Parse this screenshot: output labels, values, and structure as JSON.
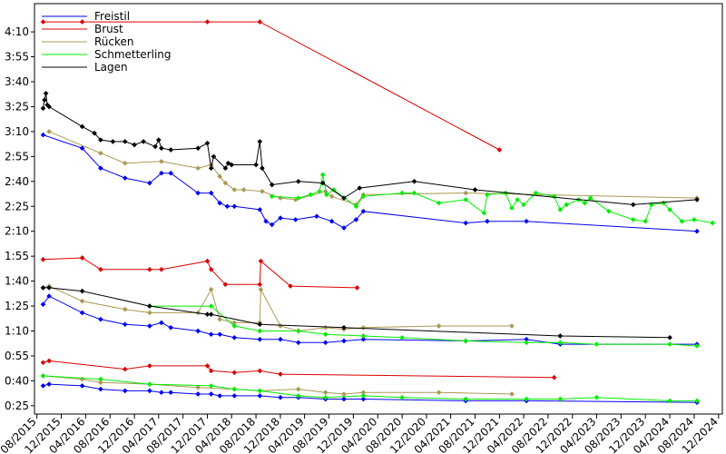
{
  "chart_data": {
    "type": "line",
    "title": "",
    "xlabel": "",
    "ylabel": "",
    "xlim": [
      "2015-07-20",
      "2024-12-20"
    ],
    "ylim_seconds": [
      20,
      267
    ],
    "x_ticks": [
      "08/2015",
      "12/2015",
      "04/2016",
      "08/2016",
      "12/2016",
      "04/2017",
      "08/2017",
      "12/2017",
      "04/2018",
      "08/2018",
      "12/2018",
      "04/2019",
      "08/2019",
      "12/2019",
      "04/2020",
      "08/2020",
      "12/2020",
      "04/2021",
      "08/2021",
      "12/2021",
      "04/2022",
      "08/2022",
      "12/2022",
      "04/2023",
      "08/2023",
      "12/2023",
      "04/2024",
      "08/2024",
      "12/2024"
    ],
    "y_ticks": [
      "0:25",
      "0:40",
      "0:55",
      "1:10",
      "1:25",
      "1:40",
      "1:55",
      "2:10",
      "2:25",
      "2:40",
      "2:55",
      "3:10",
      "3:25",
      "3:40",
      "3:55",
      "4:10"
    ],
    "legend": {
      "position": "top-left",
      "entries": [
        {
          "label": "Freistil",
          "color": "#0000ee"
        },
        {
          "label": "Brust",
          "color": "#dd0000"
        },
        {
          "label": "Rücken",
          "color": "#aa9955"
        },
        {
          "label": "Schmetterling",
          "color": "#00ee00"
        },
        {
          "label": "Lagen",
          "color": "#000000"
        }
      ]
    },
    "series": [
      {
        "name": "Freistil",
        "color": "#0000ee",
        "x": [
          "2015-09-01",
          "2016-03-15",
          "2016-06-15",
          "2016-10-15",
          "2017-02-15",
          "2017-04-15",
          "2017-06-01",
          "2017-10-15",
          "2017-12-20",
          "2018-02-01",
          "2018-03-10",
          "2018-04-15",
          "2018-08-20",
          "2018-09-20",
          "2018-10-20",
          "2018-12-01",
          "2019-02-15",
          "2019-06-01",
          "2019-08-15",
          "2019-10-15",
          "2019-12-15",
          "2020-01-20",
          "2021-06-15",
          "2021-10-01",
          "2022-04-15",
          "2024-08-15"
        ],
        "y": [
          "3:08",
          "3:00",
          "2:48",
          "2:42",
          "2:39",
          "2:45",
          "2:45",
          "2:33",
          "2:33",
          "2:27",
          "2:25",
          "2:25",
          "2:23",
          "2:16",
          "2:14",
          "2:18",
          "2:17",
          "2:19",
          "2:16",
          "2:12",
          "2:17",
          "2:22",
          "2:15",
          "2:16",
          "2:16",
          "2:10"
        ]
      },
      {
        "name": "Freistil",
        "color": "#0000ee",
        "x": [
          "2015-09-01",
          "2015-10-01",
          "2016-03-15",
          "2016-06-15",
          "2016-10-15",
          "2017-02-15",
          "2017-04-15",
          "2017-06-01",
          "2017-10-15",
          "2017-12-20",
          "2018-02-01",
          "2018-04-15",
          "2018-08-20",
          "2018-12-01",
          "2019-03-01",
          "2019-07-15",
          "2019-10-15",
          "2020-01-20",
          "2021-06-15",
          "2022-04-15",
          "2022-10-01",
          "2024-08-15"
        ],
        "y": [
          "1:26",
          "1:31",
          "1:21",
          "1:17",
          "1:14",
          "1:13",
          "1:15",
          "1:12",
          "1:10",
          "1:08",
          "1:08",
          "1:06",
          "1:05",
          "1:05",
          "1:03",
          "1:03",
          "1:04",
          "1:05",
          "1:04",
          "1:05",
          "1:02",
          "1:02"
        ]
      },
      {
        "name": "Freistil",
        "color": "#0000ee",
        "x": [
          "2015-09-01",
          "2015-10-01",
          "2016-03-15",
          "2016-06-15",
          "2016-10-15",
          "2017-02-15",
          "2017-04-15",
          "2017-06-01",
          "2017-10-15",
          "2017-12-20",
          "2018-02-01",
          "2018-04-15",
          "2018-08-20",
          "2018-12-01",
          "2019-03-01",
          "2019-07-15",
          "2019-10-15",
          "2020-01-20",
          "2021-06-15",
          "2022-04-15",
          "2024-08-15"
        ],
        "y": [
          "0:37",
          "0:38",
          "0:37",
          "0:35",
          "0:34",
          "0:34",
          "0:33",
          "0:33",
          "0:32",
          "0:32",
          "0:31",
          "0:31",
          "0:31",
          "0:30",
          "0:30",
          "0:29",
          "0:29",
          "0:29",
          "0:28",
          "0:28",
          "0:27"
        ]
      },
      {
        "name": "Brust",
        "color": "#dd0000",
        "x": [
          "2015-09-01",
          "2016-03-15",
          "2016-06-15",
          "2017-02-15",
          "2017-04-15",
          "2017-12-01",
          "2017-12-20",
          "2018-03-01",
          "2018-08-20",
          "2018-08-25",
          "2019-01-20",
          "2019-12-20"
        ],
        "y": [
          "1:53",
          "1:54",
          "1:47",
          "1:47",
          "1:47",
          "1:52",
          "1:47",
          "1:38",
          "1:38",
          "1:52",
          "1:37",
          "1:36"
        ]
      },
      {
        "name": "Brust",
        "color": "#dd0000",
        "x": [
          "2015-09-01",
          "2015-10-01",
          "2016-10-15",
          "2017-02-15",
          "2017-12-01",
          "2017-12-20",
          "2018-04-15",
          "2018-08-20",
          "2018-12-01",
          "2022-09-01"
        ],
        "y": [
          "0:51",
          "0:52",
          "0:47",
          "0:49",
          "0:49",
          "0:46",
          "0:45",
          "0:46",
          "0:44",
          "0:42"
        ]
      },
      {
        "name": "Brust",
        "color": "#dd0000",
        "x": [
          "2015-09-01",
          "2016-03-15",
          "2017-12-01",
          "2018-08-20",
          "2021-12-01"
        ],
        "y": [
          "4:16",
          "4:16",
          "4:16",
          "4:16",
          "2:59"
        ]
      },
      {
        "name": "Rücken",
        "color": "#aa9955",
        "x": [
          "2015-10-01",
          "2016-06-15",
          "2016-10-15",
          "2017-04-15",
          "2017-10-15",
          "2017-12-20",
          "2018-02-01",
          "2018-03-01",
          "2018-04-15",
          "2018-06-01",
          "2018-09-01",
          "2018-12-01",
          "2019-02-15",
          "2019-07-15",
          "2019-08-15",
          "2019-12-15",
          "2020-01-20",
          "2021-06-15",
          "2024-08-15"
        ],
        "y": [
          "3:10",
          "2:57",
          "2:51",
          "2:52",
          "2:48",
          "2:50",
          "2:43",
          "2:39",
          "2:35",
          "2:35",
          "2:34",
          "2:30",
          "2:29",
          "2:34",
          "2:31",
          "2:26",
          "2:32",
          "2:33",
          "2:30"
        ]
      },
      {
        "name": "Rücken",
        "color": "#aa9955",
        "x": [
          "2015-09-01",
          "2015-10-01",
          "2016-03-15",
          "2016-10-15",
          "2017-02-15",
          "2017-10-15",
          "2017-12-20",
          "2018-02-01",
          "2018-04-15",
          "2018-08-20",
          "2018-08-25",
          "2018-12-01",
          "2019-03-01",
          "2019-07-15",
          "2019-10-15",
          "2020-01-20",
          "2021-02-01",
          "2022-02-01"
        ],
        "y": [
          "1:36",
          "1:37",
          "1:28",
          "1:23",
          "1:21",
          "1:21",
          "1:35",
          "1:17",
          "1:15",
          "1:15",
          "1:35",
          "1:13",
          "1:10",
          "1:12",
          "1:11",
          "1:12",
          "1:13",
          "1:13"
        ]
      },
      {
        "name": "Rücken",
        "color": "#aa9955",
        "x": [
          "2015-09-01",
          "2016-03-15",
          "2016-06-15",
          "2017-02-15",
          "2017-10-15",
          "2018-04-15",
          "2018-08-20",
          "2019-03-01",
          "2019-07-15",
          "2019-10-15",
          "2020-01-20",
          "2021-02-01",
          "2022-02-01"
        ],
        "y": [
          "0:43",
          "0:41",
          "0:39",
          "0:38",
          "0:36",
          "0:35",
          "0:34",
          "0:35",
          "0:33",
          "0:32",
          "0:33",
          "0:33",
          "0:32"
        ]
      },
      {
        "name": "Schmetterling",
        "color": "#00ee00",
        "x": [
          "2018-10-20",
          "2019-03-01",
          "2019-05-01",
          "2019-06-15",
          "2019-07-01",
          "2019-07-20",
          "2019-08-25",
          "2019-12-15",
          "2020-01-20",
          "2020-08-01",
          "2020-10-01",
          "2021-02-01",
          "2021-06-15",
          "2021-09-15",
          "2021-10-01",
          "2022-01-01",
          "2022-02-01",
          "2022-03-01",
          "2022-04-01",
          "2022-06-01",
          "2022-09-01",
          "2022-10-01",
          "2022-11-01",
          "2023-01-01",
          "2023-02-01",
          "2023-03-01",
          "2023-06-01",
          "2023-10-01",
          "2023-12-01",
          "2024-01-01",
          "2024-03-01",
          "2024-04-01",
          "2024-06-01",
          "2024-08-01",
          "2024-11-01"
        ],
        "y": [
          "2:31",
          "2:30",
          "2:32",
          "2:34",
          "2:44",
          "2:32",
          "2:35",
          "2:25",
          "2:31",
          "2:33",
          "2:33",
          "2:27",
          "2:29",
          "2:21",
          "2:32",
          "2:33",
          "2:24",
          "2:29",
          "2:26",
          "2:33",
          "2:31",
          "2:23",
          "2:26",
          "2:29",
          "2:27",
          "2:30",
          "2:22",
          "2:17",
          "2:16",
          "2:26",
          "2:27",
          "2:23",
          "2:16",
          "2:17",
          "2:15"
        ]
      },
      {
        "name": "Schmetterling",
        "color": "#00ee00",
        "x": [
          "2017-02-15",
          "2017-12-20",
          "2018-04-15",
          "2018-08-20",
          "2019-03-01",
          "2019-07-15",
          "2020-01-20",
          "2020-08-01",
          "2021-06-15",
          "2022-04-15",
          "2022-10-01",
          "2023-04-01",
          "2024-04-01",
          "2024-08-15"
        ],
        "y": [
          "1:25",
          "1:25",
          "1:13",
          "1:10",
          "1:10",
          "1:08",
          "1:07",
          "1:06",
          "1:04",
          "1:03",
          "1:03",
          "1:02",
          "1:02",
          "1:01"
        ]
      },
      {
        "name": "Schmetterling",
        "color": "#00ee00",
        "x": [
          "2015-09-01",
          "2016-06-15",
          "2017-02-15",
          "2017-12-20",
          "2018-04-15",
          "2018-08-20",
          "2019-03-01",
          "2019-07-15",
          "2020-01-20",
          "2020-08-01",
          "2021-06-15",
          "2022-04-15",
          "2022-10-01",
          "2023-04-01",
          "2024-04-01",
          "2024-08-15"
        ],
        "y": [
          "0:43",
          "0:41",
          "0:38",
          "0:37",
          "0:35",
          "0:34",
          "0:31",
          "0:30",
          "0:31",
          "0:30",
          "0:29",
          "0:29",
          "0:29",
          "0:30",
          "0:28",
          "0:28"
        ]
      },
      {
        "name": "Lagen",
        "color": "#000000",
        "x": [
          "2015-09-01",
          "2015-09-08",
          "2015-09-15",
          "2015-09-22",
          "2015-10-01",
          "2016-03-15",
          "2016-05-15",
          "2016-06-15",
          "2016-08-15",
          "2016-10-15",
          "2016-12-01",
          "2017-01-15",
          "2017-03-15",
          "2017-04-01",
          "2017-04-15",
          "2017-06-01",
          "2017-10-15",
          "2017-12-01",
          "2017-12-20",
          "2018-01-01",
          "2018-03-01",
          "2018-03-15",
          "2018-04-01",
          "2018-08-01",
          "2018-08-20",
          "2018-09-01",
          "2018-10-20",
          "2019-03-01",
          "2019-07-01",
          "2019-10-15",
          "2020-01-01",
          "2020-10-01",
          "2021-08-01",
          "2023-10-01",
          "2024-08-15"
        ],
        "y": [
          "3:24",
          "3:29",
          "3:33",
          "3:26",
          "3:25",
          "3:13",
          "3:09",
          "3:05",
          "3:04",
          "3:04",
          "3:02",
          "3:04",
          "3:01",
          "3:05",
          "3:00",
          "2:59",
          "3:00",
          "3:03",
          "2:48",
          "2:55",
          "2:48",
          "2:51",
          "2:50",
          "2:50",
          "3:04",
          "2:48",
          "2:38",
          "2:40",
          "2:39",
          "2:30",
          "2:36",
          "2:40",
          "2:35",
          "2:26",
          "2:29"
        ]
      },
      {
        "name": "Lagen",
        "color": "#000000",
        "x": [
          "2015-09-01",
          "2015-10-01",
          "2016-03-15",
          "2017-02-15",
          "2017-12-01",
          "2017-12-20",
          "2018-08-20",
          "2019-10-15",
          "2022-10-01",
          "2024-04-01"
        ],
        "y": [
          "1:36",
          "1:36",
          "1:34",
          "1:25",
          "1:20",
          "1:20",
          "1:14",
          "1:12",
          "1:07",
          "1:06"
        ]
      }
    ]
  }
}
